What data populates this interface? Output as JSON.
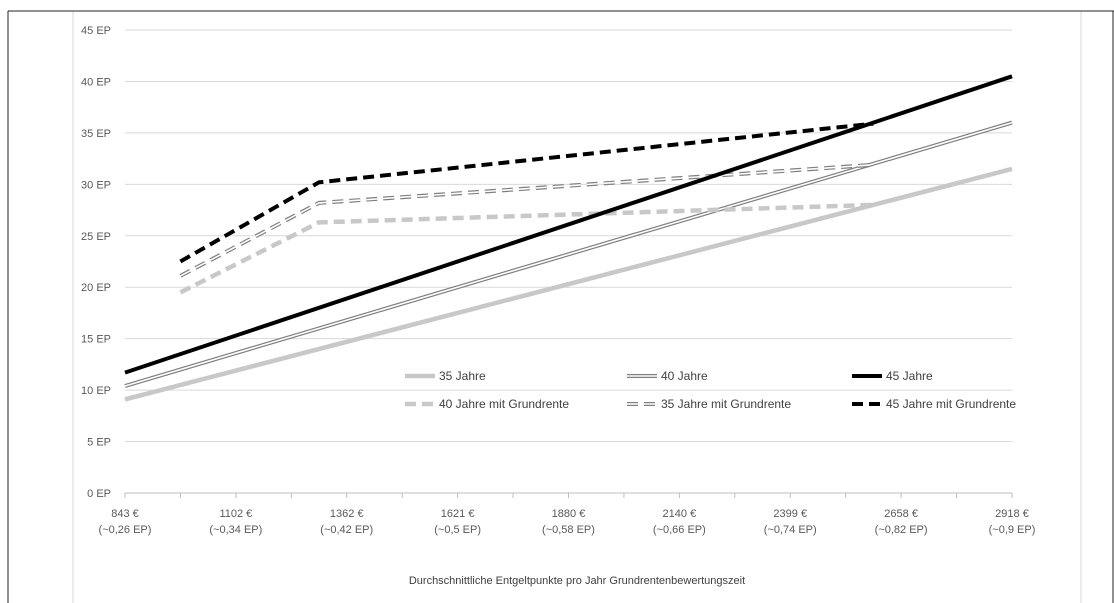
{
  "chart_data": {
    "type": "line",
    "xlabel": "Durchschnittliche Entgeltpunkte pro Jahr Grundrentenbewertungszeit",
    "ylabel": "",
    "ylim": [
      0,
      45
    ],
    "y_ticks": [
      "0 EP",
      "5 EP",
      "10 EP",
      "15 EP",
      "20 EP",
      "25 EP",
      "30 EP",
      "35 EP",
      "40 EP",
      "45 EP"
    ],
    "x_ticks": [
      {
        "line1": "843 €",
        "line2": "(~0,26 EP)"
      },
      {
        "line1": "1102 €",
        "line2": "(~0,34 EP)"
      },
      {
        "line1": "1362 €",
        "line2": "(~0,42 EP)"
      },
      {
        "line1": "1621 €",
        "line2": "(~0,5 EP)"
      },
      {
        "line1": "1880 €",
        "line2": "(~0,58 EP)"
      },
      {
        "line1": "2140 €",
        "line2": "(~0,66 EP)"
      },
      {
        "line1": "2399 €",
        "line2": "(~0,74 EP)"
      },
      {
        "line1": "2658 €",
        "line2": "(~0,82 EP)"
      },
      {
        "line1": "2918 €",
        "line2": "(~0,9 EP)"
      }
    ],
    "x_range": [
      0.26,
      0.9
    ],
    "grid": true,
    "legend_placement": "inside-bottom-right",
    "series": [
      {
        "name": "35 Jahre",
        "style": "solid-light-grey",
        "color": "#c8c8c8",
        "x": [
          0.26,
          0.9
        ],
        "y": [
          9.1,
          31.5
        ]
      },
      {
        "name": "40  Jahre",
        "style": "double-grey",
        "color": "#7f7f7f",
        "x": [
          0.26,
          0.9
        ],
        "y": [
          10.4,
          36.0
        ]
      },
      {
        "name": "45 Jahre",
        "style": "solid-black",
        "color": "#000000",
        "x": [
          0.26,
          0.9
        ],
        "y": [
          11.7,
          40.5
        ]
      },
      {
        "name": "40 Jahre mit Grundrente",
        "style": "dashed-light-grey",
        "color": "#c8c8c8",
        "x": [
          0.3,
          0.4,
          0.8
        ],
        "y": [
          19.5,
          26.3,
          28.0
        ]
      },
      {
        "name": "35 Jahre mit Grundrente",
        "style": "dashed-double-grey",
        "color": "#7f7f7f",
        "x": [
          0.3,
          0.4,
          0.8
        ],
        "y": [
          21.1,
          28.2,
          31.9
        ]
      },
      {
        "name": "45 Jahre mit Grundrente",
        "style": "dashed-black",
        "color": "#000000",
        "x": [
          0.3,
          0.4,
          0.8
        ],
        "y": [
          22.5,
          30.2,
          35.9
        ]
      }
    ]
  }
}
